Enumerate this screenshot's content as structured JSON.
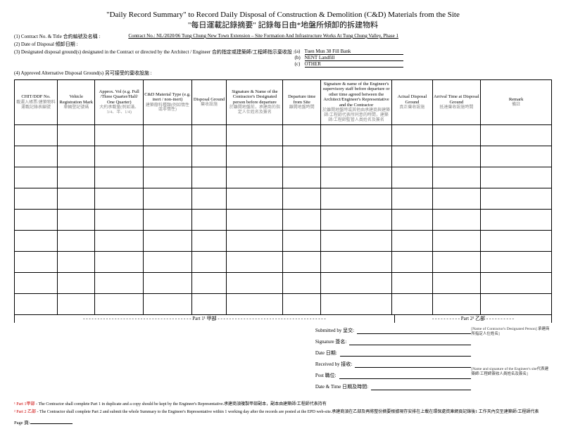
{
  "title": {
    "en": "\"Daily Record Summary\" to Record Daily Disposal of Construction & Demolition (C&D) Materials from the Site",
    "zh": "\"每日運載記錄摘要\" 記錄每日由*地盤所傾卸的拆建物料"
  },
  "meta": {
    "row1_label": "(1) Contract No. & Title 合約編號及名稱 :",
    "row1_value": "Contract No.: NL/2020/06 Tung Chung New Town Extension – Site Formation And Infrastructure Works At Tung Chung Valley, Phase 1",
    "row2_label": "(2) Date of Disposal 傾卸日期 :",
    "row3_label": "(3) Designated disposal ground(s) designated in the Contract or directed by the Architect / Engineer 合約指定或建築師/工程師指示棄收設 :",
    "row4_label": "(4) Approved Alternative Disposal Ground(s) 另可接受的棄收設施 :",
    "grounds": {
      "a_prefix": "(a)",
      "a": "Tuen Mun 38 Fill Bank",
      "b_prefix": "(b)",
      "b": "NENT Landfill",
      "c_prefix": "(c)",
      "c": "OTHER"
    }
  },
  "headers": [
    {
      "en": "CHIT/DDF No.",
      "zh": "載運入帳票/建築物料運載記錄表編號"
    },
    {
      "en": "Vehicle Registration Mark",
      "zh": "車輛登記號碼"
    },
    {
      "en": "Approx. Vol (e.g. Full /Three Quarter/Half/ One Quarter)",
      "zh": "大約承載量(例如滿、3/4、半、1/4)"
    },
    {
      "en": "C&D Material Type (e.g. inert / non-inert)",
      "zh": "建築廢料種類(例如惰性或非惰性)"
    },
    {
      "en": "Disposal Ground",
      "zh": "棄收設施"
    },
    {
      "en": "Signature & Name of the Contractor's Designated person before departure",
      "zh": "於離開地盤前，承建商的指定人仕姓名及簽名"
    },
    {
      "en": "Departure time from Site",
      "zh": "離開地盤時間"
    },
    {
      "en": "Signature & name of the Engineer's supervisory staff before departure or other time agreed between the Architect/Engineer's Representative and the Contractor",
      "zh": "於離開地盤時或其他由承建商與建築師/工程師代表所同意的時間，建築師/工程師監管人員姓名及簽名"
    },
    {
      "en": "Actual Disposal Ground",
      "zh": "真正棄收設施"
    },
    {
      "en": "Arrival Time at Disposal Ground",
      "zh": "抵達棄收設施時間"
    },
    {
      "en": "Remark",
      "zh": "備註"
    }
  ],
  "col_widths": [
    "8%",
    "7%",
    "9%",
    "9%",
    "6.5%",
    "10.5%",
    "7%",
    "13.3%",
    "7.5%",
    "9%",
    "13.2%"
  ],
  "num_rows": 9,
  "parts": {
    "part1": "Part 1¹ 甲部",
    "part2": "Part 2² 乙部",
    "dashes": "- - - - - - - - - - - - - - - - - - - - - - - - - - - - - - - - - - - - - - - - - - - - - - - - - - - -"
  },
  "sig": {
    "submitted": "Submitted by 呈交:",
    "signature": "Signature 簽名:",
    "date1": "Date 日期:",
    "received": "Received by 接收:",
    "post": "Post 職位:",
    "date2": "Date & Time 日期及時間:",
    "note1": "[Name of Contractor's Designated Person]\n承建商所指定人仕姓名]",
    "note2": "[Name and signature of the Engineer's site代表建築師/工程師簽收人員姓名及簽名]"
  },
  "footnotes": {
    "f1_prefix": "¹ Part 1甲部",
    "f1": " - The Contractor shall complete Part 1 in duplicate and a copy should be kept by the Engineer's Representative.承建商須複製甲部副本，副本由建築師/工程師代表持有",
    "f2_prefix": "² Part 2 乙部",
    "f2": " - The Contractor shall complete Part 2 and submit the whole Summary to the Engineer's Representative within 1 working day after the records are posted at the EPD web-site.承建商須在乙部及再將整份摘要根據現存安排在上載在環保處資庫網頁記錄後1 工作天內交至建築師/工程師代表"
  },
  "page_label": "Page 頁:"
}
